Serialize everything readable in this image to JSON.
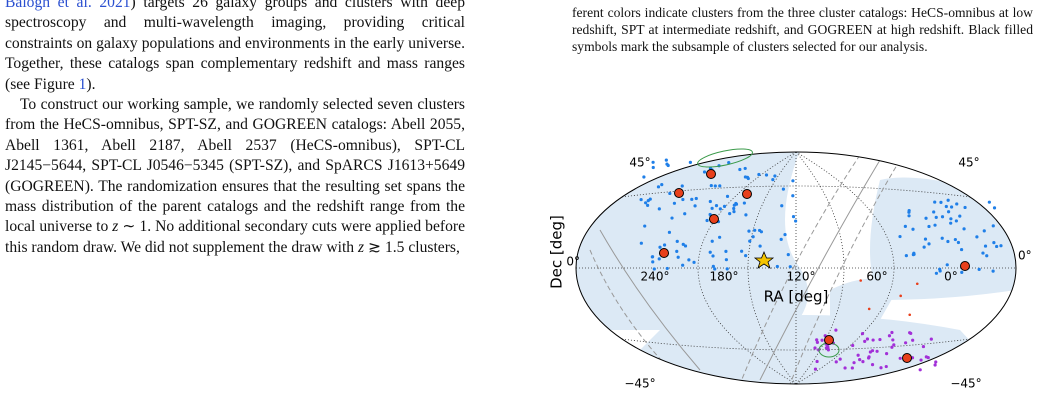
{
  "left_column": {
    "p1": [
      "Balogh et al. 2021",
      ") targets 26 galaxy groups and clusters with deep spectroscopy and multi-wavelength imaging, providing critical constraints on galaxy populations and environments in the early universe. Together, these catalogs span complementary redshift and mass ranges (see Figure ",
      "1",
      ")."
    ],
    "p2": [
      "To construct our working sample, we randomly selected seven clusters from the HeCS-omnibus, SPT-SZ, and GOGREEN catalogs: Abell 2055, Abell 1361, Abell 2187, Abell 2537 (HeCS-omnibus), SPT-CL J2145−5644, SPT-CL J0546−5345 (SPT-SZ), and SpARCS J1613+5649 (GOGREEN). The randomization ensures that the resulting set spans the mass distribution of the parent catalogs and the redshift range from the local universe to ",
      "z",
      " ∼ 1. No additional secondary cuts were applied before this random draw. We did not supplement the draw with ",
      "z",
      " ≳ 1.5 clusters,"
    ]
  },
  "caption": "ferent colors indicate clusters from the three cluster catalogs: HeCS-omnibus at low redshift, SPT at intermediate redshift, and GOGREEN at high redshift. Black filled symbols mark the subsample of clusters selected for our analysis.",
  "figure": {
    "y_label": "Dec [deg]",
    "x_label": "RA [deg]",
    "dec_labels": [
      "45°",
      "45°",
      "0°",
      "0°",
      "−45°",
      "−45°"
    ],
    "ra_labels": [
      "240°",
      "180°",
      "120°",
      "60°",
      "0°"
    ]
  }
}
